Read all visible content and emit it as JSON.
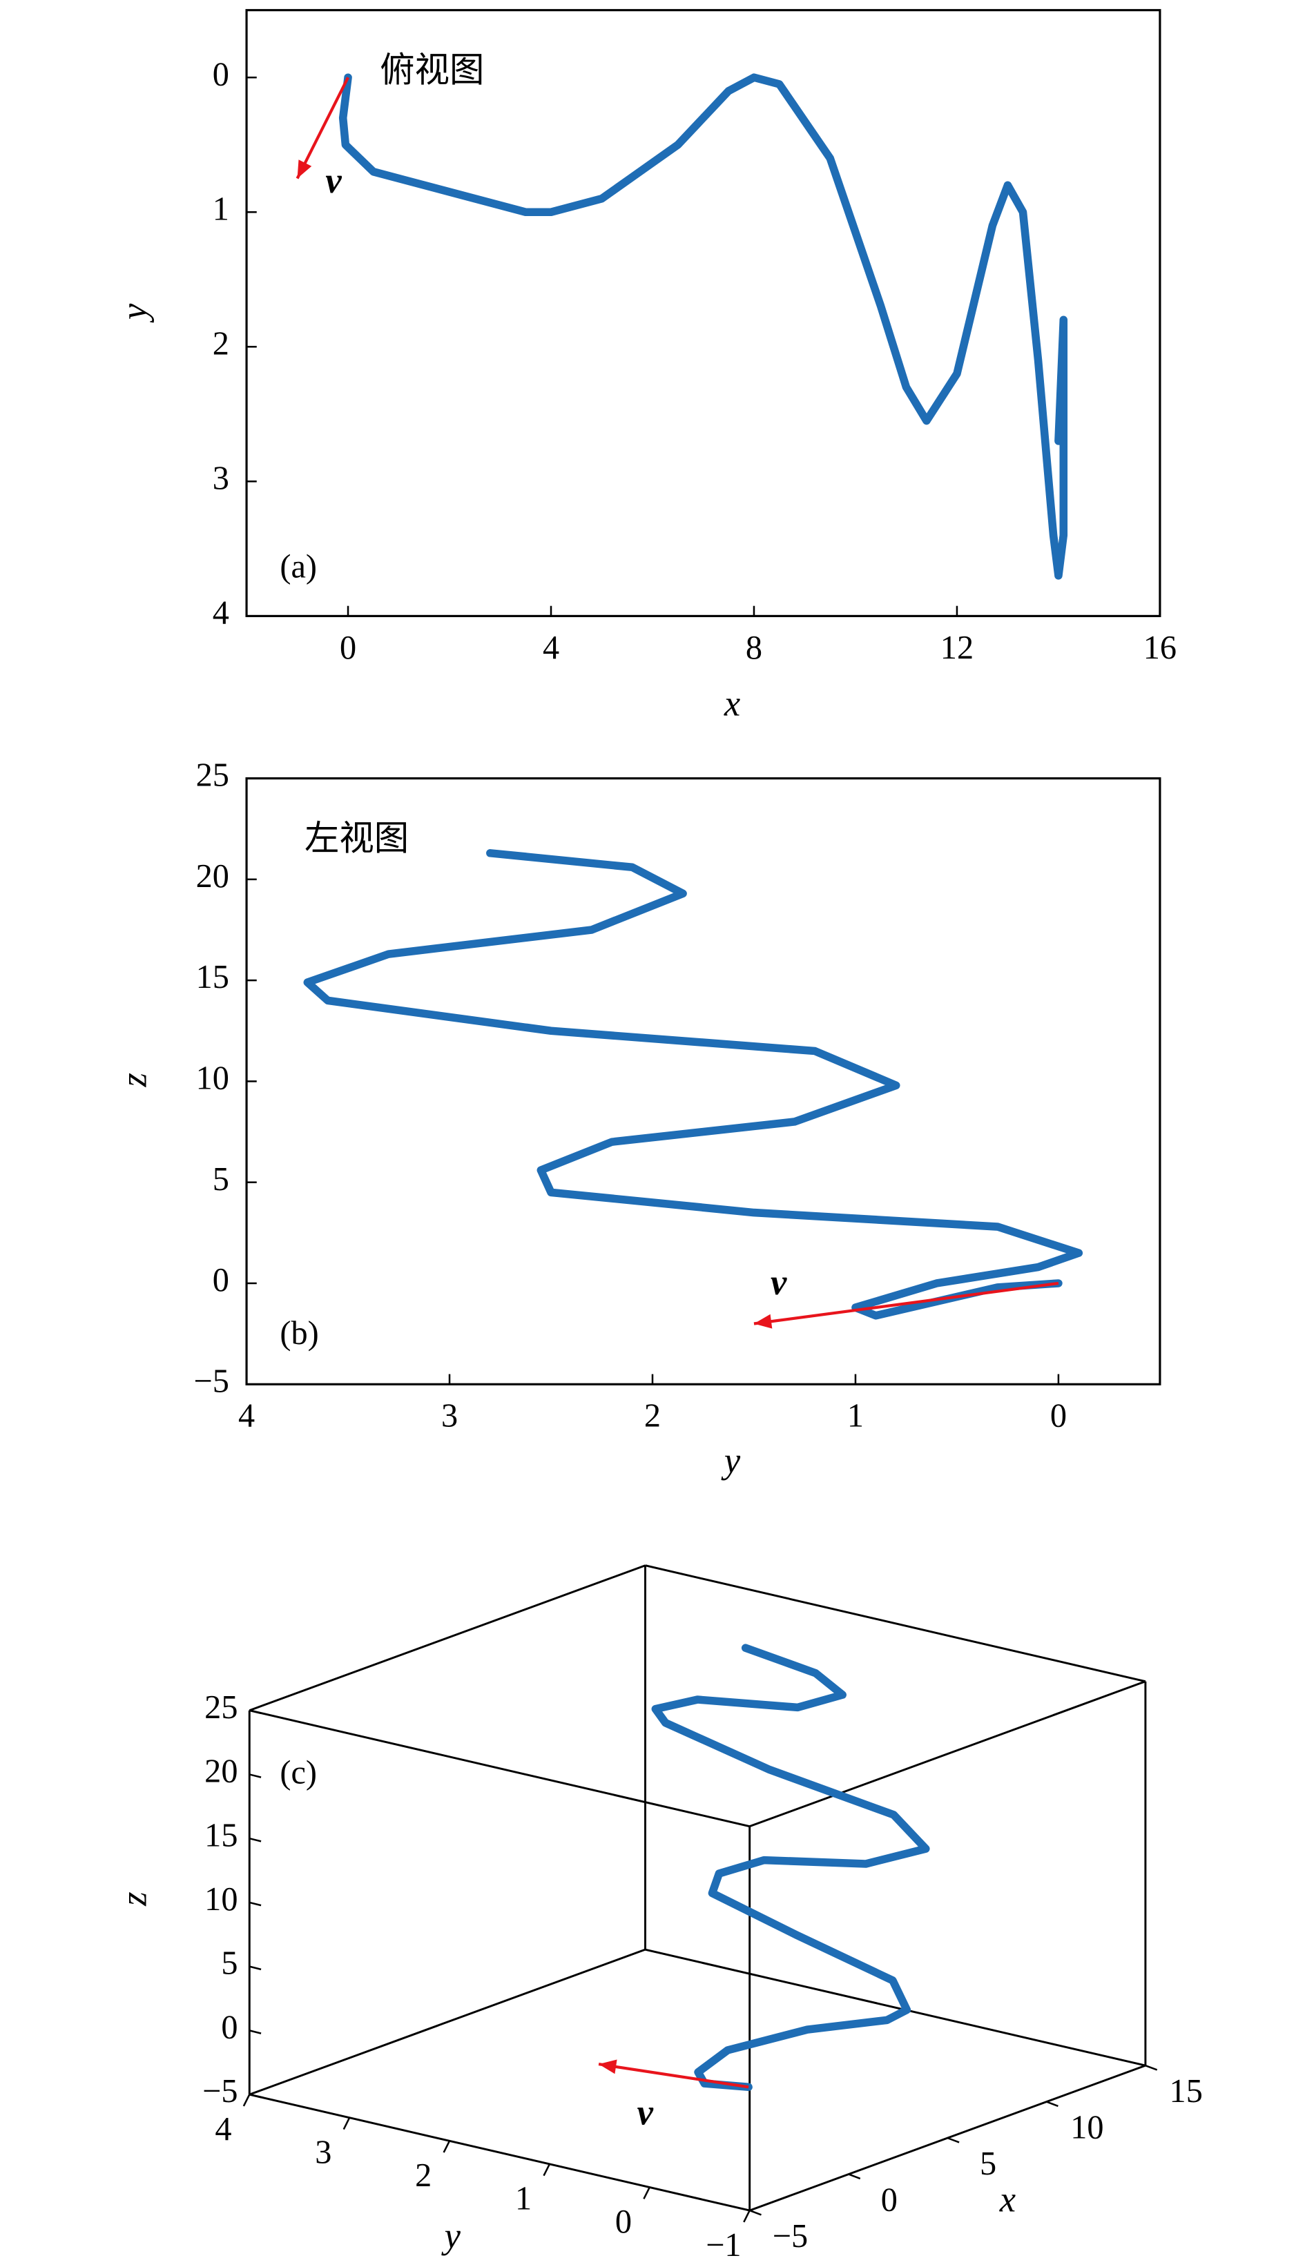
{
  "chart_data": [
    {
      "type": "line",
      "annotation": "俯视图",
      "panel_label": "(a)",
      "xlabel": "x",
      "ylabel": "y",
      "xlim": [
        -2,
        16
      ],
      "ylim": [
        4,
        -0.5
      ],
      "xticks": [
        0,
        4,
        8,
        12,
        16
      ],
      "yticks": [
        0,
        1,
        2,
        3,
        4
      ],
      "series": [
        {
          "color": "#1f6db5",
          "x": [
            0,
            -0.1,
            -0.05,
            0.5,
            2,
            3.5,
            4,
            5,
            6.5,
            7.5,
            8,
            8.5,
            9.5,
            10.5,
            11,
            11.4,
            12,
            12.7,
            13,
            13.3,
            13.6,
            13.9,
            14,
            14.1,
            14.1,
            14.1,
            14
          ],
          "values": [
            0,
            0.3,
            0.5,
            0.7,
            0.85,
            1.0,
            1.0,
            0.9,
            0.5,
            0.1,
            0,
            0.05,
            0.6,
            1.7,
            2.3,
            2.55,
            2.2,
            1.1,
            0.8,
            1.0,
            2.1,
            3.4,
            3.7,
            3.4,
            2.3,
            1.8,
            2.7
          ]
        }
      ],
      "arrow": {
        "label": "v",
        "color": "#e8141c",
        "x": [
          0,
          -1
        ],
        "y": [
          0,
          0.75
        ]
      }
    },
    {
      "type": "line",
      "annotation": "左视图",
      "panel_label": "(b)",
      "xlabel": "y",
      "ylabel": "z",
      "xlim": [
        4,
        -0.5
      ],
      "ylim": [
        -5,
        25
      ],
      "xticks": [
        4,
        3,
        2,
        1,
        0
      ],
      "yticks": [
        {
          "value": -5,
          "label": "−5"
        },
        0,
        5,
        10,
        15,
        20,
        25
      ],
      "series": [
        {
          "color": "#1f6db5",
          "x": [
            0,
            0.3,
            0.9,
            1,
            0.6,
            0.1,
            -0.1,
            0.3,
            1.5,
            2.5,
            2.55,
            2.2,
            1.3,
            0.8,
            1.2,
            2.5,
            3.6,
            3.7,
            3.3,
            2.3,
            1.85,
            2.1,
            2.8
          ],
          "values": [
            0,
            -0.2,
            -1.6,
            -1.2,
            0,
            0.8,
            1.5,
            2.8,
            3.5,
            4.5,
            5.6,
            7,
            8,
            9.8,
            11.5,
            12.5,
            14,
            14.9,
            16.3,
            17.5,
            19.3,
            20.6,
            21.3
          ]
        }
      ],
      "arrow": {
        "label": "v",
        "color": "#e8141c",
        "x": [
          0,
          1.5
        ],
        "y": [
          0,
          -2
        ]
      }
    },
    {
      "type": "line3d",
      "panel_label": "(c)",
      "xlabel": "x",
      "ylabel": "y",
      "zlabel": "z",
      "xlim": [
        -5,
        15
      ],
      "ylim": [
        -1,
        4
      ],
      "zlim": [
        -5,
        25
      ],
      "xticks": [
        {
          "value": -5,
          "label": "−5"
        },
        0,
        5,
        10,
        15
      ],
      "yticks": [
        {
          "value": -1,
          "label": "−1"
        },
        0,
        1,
        2,
        3,
        4
      ],
      "zticks": [
        {
          "value": -5,
          "label": "−5"
        },
        0,
        5,
        10,
        15,
        20,
        25
      ],
      "series": [
        {
          "color": "#1f6db5",
          "x": [
            0,
            0.3,
            2,
            4,
            6,
            7.5,
            8,
            8.8,
            10,
            10.8,
            11.4,
            11.9,
            12.5,
            13,
            13.4,
            13.7,
            14,
            14,
            14.1,
            14.1,
            14.1,
            14,
            14
          ],
          "y": [
            0,
            0.5,
            0.9,
            1.0,
            0.6,
            0.1,
            0,
            0.3,
            1.5,
            2.5,
            2.55,
            2.2,
            1.3,
            0.8,
            1.2,
            2.5,
            3.6,
            3.7,
            3.3,
            2.3,
            1.85,
            2.1,
            2.8
          ],
          "z": [
            0,
            -0.8,
            -1.6,
            -1.2,
            0,
            0.8,
            1.5,
            2.8,
            3.5,
            4.5,
            5.6,
            7,
            8,
            9.8,
            11.5,
            12.5,
            14,
            14.9,
            16.3,
            17.5,
            19.3,
            20.6,
            21.3
          ]
        }
      ],
      "arrow": {
        "label": "v",
        "color": "#e8141c",
        "x": [
          0,
          -1
        ],
        "y": [
          0,
          1.3
        ],
        "z": [
          0,
          0
        ]
      }
    }
  ]
}
